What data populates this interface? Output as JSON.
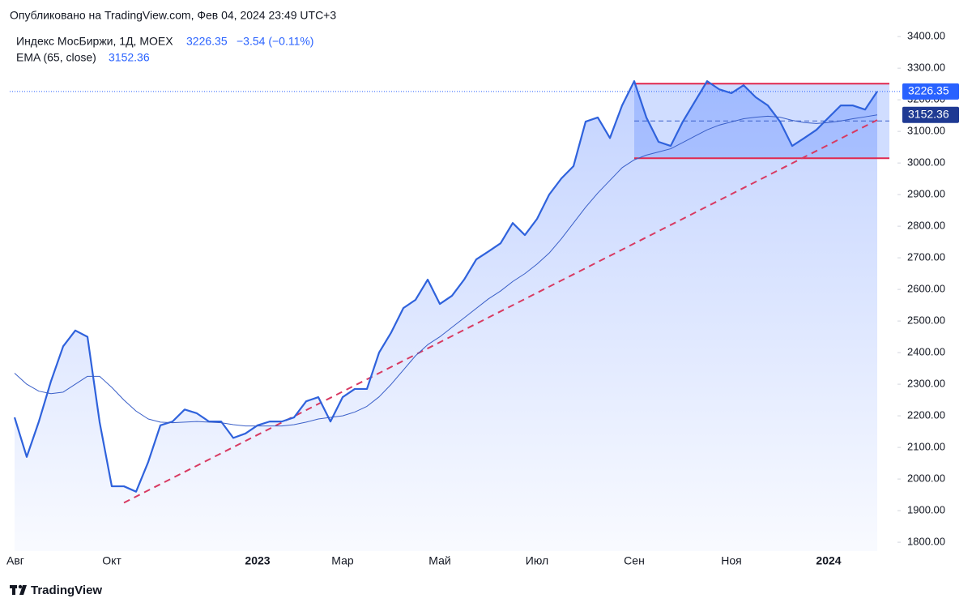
{
  "chart_data": {
    "type": "line",
    "published": "Опубликовано на TradingView.com, Фев 04, 2024 23:49 UTC+3",
    "instrument": "Индекс МосБиржи, 1Д, MOEX",
    "change": "−3.54 (−0.11%)",
    "indicator": "EMA (65, close)",
    "brand": "TradingView",
    "categories": [
      "Авг",
      null,
      null,
      null,
      null,
      null,
      null,
      null,
      "Окт",
      null,
      null,
      null,
      null,
      null,
      null,
      null,
      null,
      null,
      null,
      null,
      "2023",
      null,
      null,
      null,
      null,
      null,
      null,
      "Мар",
      null,
      null,
      null,
      null,
      null,
      null,
      null,
      "Май",
      null,
      null,
      null,
      null,
      null,
      null,
      null,
      "Июл",
      null,
      null,
      null,
      null,
      null,
      null,
      null,
      "Сен",
      null,
      null,
      null,
      null,
      null,
      null,
      null,
      "Ноя",
      null,
      null,
      null,
      null,
      null,
      null,
      null,
      "2024",
      null,
      null,
      null,
      null
    ],
    "series": [
      {
        "name": "Индекс МосБиржи",
        "color": "#2f62dc",
        "values": [
          2195,
          2070,
          2182,
          2310,
          2420,
          2470,
          2450,
          2180,
          1977,
          1977,
          1960,
          2054,
          2170,
          2182,
          2220,
          2208,
          2182,
          2182,
          2130,
          2144,
          2170,
          2182,
          2182,
          2195,
          2246,
          2259,
          2182,
          2259,
          2285,
          2285,
          2400,
          2464,
          2541,
          2567,
          2631,
          2554,
          2580,
          2631,
          2695,
          2720,
          2746,
          2810,
          2772,
          2823,
          2900,
          2951,
          2990,
          3131,
          3144,
          3079,
          3182,
          3259,
          3144,
          3067,
          3054,
          3131,
          3195,
          3259,
          3233,
          3221,
          3246,
          3208,
          3182,
          3131,
          3054,
          3079,
          3105,
          3144,
          3182,
          3182,
          3169,
          3226.35
        ]
      },
      {
        "name": "EMA",
        "color": "#3a5fc8",
        "values": [
          2335,
          2300,
          2278,
          2270,
          2275,
          2300,
          2325,
          2325,
          2290,
          2250,
          2215,
          2190,
          2180,
          2178,
          2180,
          2182,
          2180,
          2178,
          2172,
          2168,
          2168,
          2168,
          2168,
          2172,
          2180,
          2190,
          2195,
          2200,
          2212,
          2230,
          2260,
          2300,
          2345,
          2390,
          2425,
          2450,
          2480,
          2510,
          2540,
          2570,
          2595,
          2625,
          2650,
          2680,
          2715,
          2760,
          2810,
          2860,
          2905,
          2945,
          2985,
          3010,
          3025,
          3035,
          3045,
          3065,
          3085,
          3105,
          3120,
          3130,
          3140,
          3145,
          3148,
          3145,
          3135,
          3128,
          3125,
          3128,
          3133,
          3140,
          3146,
          3152.36
        ]
      }
    ],
    "channel": {
      "from": 51,
      "to": 72,
      "top": 3251,
      "bottom": 3015,
      "color": "#e0284f"
    },
    "trendline": {
      "from": {
        "index": 9,
        "value": 1925
      },
      "to": {
        "index": 71,
        "value": 3136
      },
      "color": "#d83a62"
    },
    "ylim": [
      1772,
      3426
    ],
    "yticks": [
      {
        "value": 1800,
        "label": "1800.00"
      },
      {
        "value": 1900,
        "label": "1900.00"
      },
      {
        "value": 2000,
        "label": "2000.00"
      },
      {
        "value": 2100,
        "label": "2100.00"
      },
      {
        "value": 2200,
        "label": "2200.00"
      },
      {
        "value": 2300,
        "label": "2300.00"
      },
      {
        "value": 2400,
        "label": "2400.00"
      },
      {
        "value": 2500,
        "label": "2500.00"
      },
      {
        "value": 2600,
        "label": "2600.00"
      },
      {
        "value": 2700,
        "label": "2700.00"
      },
      {
        "value": 2800,
        "label": "2800.00"
      },
      {
        "value": 2900,
        "label": "2900.00"
      },
      {
        "value": 3000,
        "label": "3000.00"
      },
      {
        "value": 3100,
        "label": "3100.00"
      },
      {
        "value": 3200,
        "label": "3200.00"
      },
      {
        "value": 3300,
        "label": "3300.00"
      },
      {
        "value": 3400,
        "label": "3400.00"
      }
    ]
  }
}
